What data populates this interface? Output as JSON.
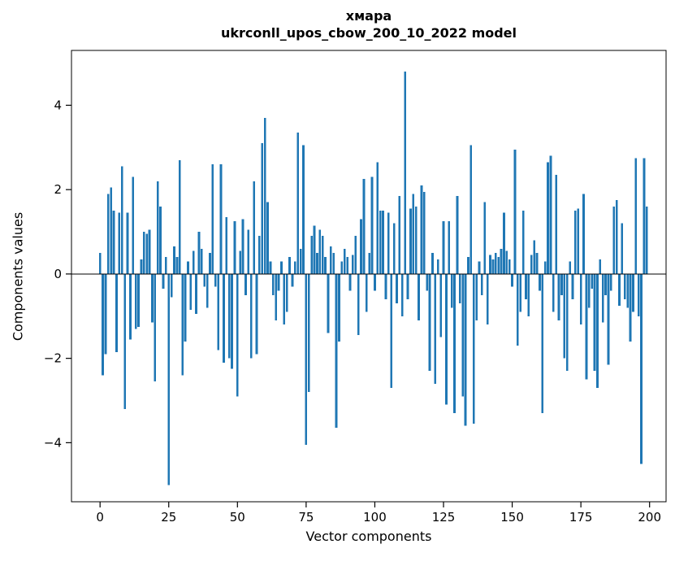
{
  "header": {
    "title_line1": "хмара",
    "title_line2": "ukrconll_upos_cbow_200_10_2022 model"
  },
  "chart_data": {
    "type": "bar",
    "title": "хмара\nukrconll_upos_cbow_200_10_2022 model",
    "xlabel": "Vector components",
    "ylabel": "Components values",
    "bar_color": "#1f77b4",
    "grid": false,
    "legend": "none",
    "xlim": [
      -10.4,
      206
    ],
    "ylim": [
      -5.4,
      5.3
    ],
    "xticks": [
      0,
      25,
      50,
      75,
      100,
      125,
      150,
      175,
      200
    ],
    "yticks": [
      -4,
      -2,
      0,
      2,
      4
    ],
    "bar_width": 0.8,
    "x_start": 0,
    "values": [
      0.5,
      -2.4,
      -1.9,
      1.9,
      2.05,
      1.5,
      -1.85,
      1.45,
      2.55,
      -3.2,
      1.45,
      -1.55,
      2.3,
      -1.3,
      -1.25,
      0.35,
      1.0,
      0.95,
      1.05,
      -1.15,
      -2.55,
      2.2,
      1.6,
      -0.35,
      0.4,
      -5.0,
      -0.55,
      0.65,
      0.4,
      2.7,
      -2.4,
      -1.6,
      0.3,
      -0.85,
      0.55,
      -0.95,
      1.0,
      0.6,
      -0.3,
      -0.8,
      0.5,
      2.6,
      -0.3,
      -1.8,
      2.6,
      -2.1,
      1.35,
      -2.0,
      -2.25,
      1.25,
      -2.9,
      0.55,
      1.3,
      -0.5,
      1.05,
      -2.0,
      2.2,
      -1.9,
      0.9,
      3.1,
      3.7,
      1.7,
      0.3,
      -0.5,
      -1.1,
      -0.4,
      0.3,
      -1.2,
      -0.9,
      0.4,
      -0.3,
      0.3,
      3.35,
      0.6,
      3.05,
      -4.05,
      -2.8,
      0.9,
      1.15,
      0.5,
      1.05,
      0.9,
      0.4,
      -1.4,
      0.65,
      0.5,
      -3.65,
      -1.6,
      0.3,
      0.6,
      0.4,
      -0.4,
      0.45,
      0.9,
      -1.45,
      1.3,
      2.25,
      -0.9,
      0.5,
      2.3,
      -0.4,
      2.65,
      1.5,
      1.5,
      -0.6,
      1.45,
      -2.7,
      1.2,
      -0.7,
      1.85,
      -1.0,
      4.8,
      -0.6,
      1.55,
      1.9,
      1.6,
      -1.1,
      2.1,
      1.95,
      -0.4,
      -2.3,
      0.5,
      -2.6,
      0.35,
      -1.5,
      1.25,
      -3.1,
      1.25,
      -0.8,
      -3.3,
      1.85,
      -0.7,
      -2.9,
      -3.6,
      0.4,
      3.05,
      -3.55,
      -1.1,
      0.3,
      -0.5,
      1.7,
      -1.2,
      0.45,
      0.35,
      0.5,
      0.4,
      0.6,
      1.45,
      0.55,
      0.35,
      -0.3,
      2.95,
      -1.7,
      -0.9,
      1.5,
      -0.6,
      -1.0,
      0.45,
      0.8,
      0.5,
      -0.4,
      -3.3,
      0.3,
      2.65,
      2.8,
      -0.9,
      2.35,
      -1.1,
      -0.5,
      -2.0,
      -2.3,
      0.3,
      -0.6,
      1.5,
      1.55,
      -1.2,
      1.9,
      -2.5,
      -0.8,
      -0.35,
      -2.3,
      -2.7,
      0.35,
      -1.15,
      -0.5,
      -2.15,
      -0.4,
      1.6,
      1.75,
      -0.75,
      1.2,
      -0.6,
      -0.8,
      -1.6,
      -0.9,
      2.75,
      -1.0,
      -4.5,
      2.75,
      1.6
    ]
  }
}
